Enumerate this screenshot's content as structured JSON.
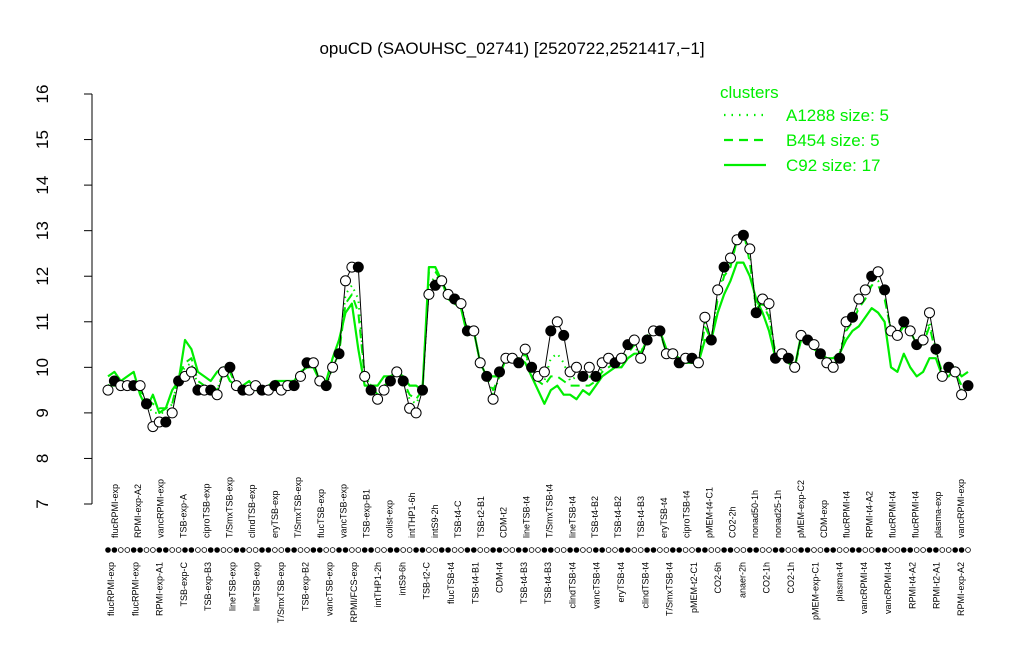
{
  "chart_data": {
    "type": "line",
    "title": "opuCD (SAOUHSC_02741) [2520722,2521417,−1]",
    "xlabel": "",
    "ylabel": "",
    "ylim": [
      7,
      16
    ],
    "y_ticks": [
      "7",
      "8",
      "9",
      "10",
      "11",
      "12",
      "13",
      "14",
      "15",
      "16"
    ],
    "grid": false,
    "legend": {
      "title": "clusters",
      "position": "top-right",
      "entries": [
        {
          "label": "A1288 size: 5",
          "style": "dotted"
        },
        {
          "label": "B454 size: 5",
          "style": "dashed"
        },
        {
          "label": "C92 size: 17",
          "style": "solid"
        }
      ]
    },
    "colors": {
      "cluster_line": "#00ee00",
      "data_line": "#000000",
      "rug": "#000000"
    },
    "top_labels": [
      "flucRPMI-exp",
      "RPMI-exp-A2",
      "vancRPMI-exp",
      "TSB-exp-A",
      "ciproTSB-exp",
      "T/SmxTSB-exp",
      "clindTSB-exp",
      "eryTSB-exp",
      "T/SmxTSB-exp",
      "flucTSB-exp",
      "vancTSB-exp",
      "TSB-exp-B1",
      "colist-exp",
      "intTHP1-6h",
      "intS9-2h",
      "TSB-t4-C",
      "TSB-t2-B1",
      "CDM-t2",
      "lineTSB-t4",
      "T/SmxTSB-t4",
      "lineTSB-t4",
      "TSB-t4-B2",
      "TSB-t4-B2",
      "TSB-t4-B3",
      "eryTSB-t4",
      "ciproTSB-t4",
      "pMEM-t4-C1",
      "CO2-2h",
      "nonad50-1h",
      "nonad25-1h",
      "pMEM-exp-C2",
      "CDM-exp",
      "flucRPMI-t4",
      "RPMI-t4-A2",
      "flucRPMI-t4",
      "flucRPMI-t4",
      "plasma-exp",
      "vancRPMI-exp"
    ],
    "bottom_labels": [
      "flucRPMI-exp",
      "flucRPMI-exp",
      "RPMI-exp-A1",
      "TSB-exp-C",
      "TSB-exp-B3",
      "lineTSB-exp",
      "lineTSB-exp",
      "T/SmxTSB-exp",
      "TSB-exp-B2",
      "vancTSB-exp",
      "RPMI/FCS-exp",
      "intTHP1-2h",
      "intS9-6h",
      "TSB-t2-C",
      "flucTSB-t4",
      "TSB-t4-B1",
      "CDM-t4",
      "TSB-t4-B3",
      "TSB-t4-B3",
      "clindTSB-t4",
      "vancTSB-t4",
      "eryTSB-t4",
      "clindTSB-t4",
      "T/SmxTSB-t4",
      "pMEM-t2-C1",
      "CO2-6h",
      "anaer-2h",
      "CO2-1h",
      "CO2-1h",
      "pMEM-exp-C1",
      "plasma-t4",
      "vancRPMI-t4",
      "vancRPMI-t4",
      "RPMI-t4-A2",
      "RPMI-t2-A1",
      "RPMI-exp-A2"
    ],
    "series": [
      {
        "values": [
          9.5,
          9.7,
          9.6,
          9.6,
          9.6,
          9.6,
          9.2,
          8.7,
          8.8,
          8.8,
          9.0,
          9.7,
          9.8,
          9.9,
          9.5,
          9.5,
          9.5,
          9.4,
          9.9,
          10.0,
          9.6,
          9.5,
          9.5,
          9.6,
          9.5,
          9.5,
          9.6,
          9.5,
          9.6,
          9.6,
          9.8,
          10.1,
          10.1,
          9.7,
          9.6,
          10.0,
          10.3,
          11.9,
          12.2,
          12.2,
          9.8,
          9.5,
          9.3,
          9.5,
          9.7,
          9.9,
          9.7,
          9.1,
          9.0,
          9.5,
          11.6,
          11.8,
          11.9,
          11.6,
          11.5,
          11.4,
          10.8,
          10.8,
          10.1,
          9.8,
          9.3,
          9.9,
          10.2,
          10.2,
          10.1,
          10.4,
          10.0,
          9.8,
          9.9,
          10.8,
          11.0,
          10.7,
          9.9,
          10.0,
          9.8,
          10.0,
          9.8,
          10.1,
          10.2,
          10.1,
          10.2,
          10.5,
          10.6,
          10.2,
          10.6,
          10.8,
          10.8,
          10.3,
          10.3,
          10.1,
          10.2,
          10.2,
          10.1,
          11.1,
          10.6,
          11.7,
          12.2,
          12.4,
          12.8,
          12.9,
          12.6,
          11.2,
          11.5,
          11.4,
          10.2,
          10.3,
          10.2,
          10.0,
          10.7,
          10.6,
          10.5,
          10.3,
          10.1,
          10.0,
          10.2,
          11.0,
          11.1,
          11.5,
          11.7,
          12.0,
          12.1,
          11.7,
          10.8,
          10.7,
          11.0,
          10.8,
          10.5,
          10.6,
          11.2,
          10.4,
          9.8,
          10.0,
          9.9,
          9.4,
          9.6
        ]
      },
      {
        "name": "C92 size: 17",
        "values": [
          9.8,
          9.9,
          9.7,
          9.8,
          9.9,
          9.4,
          9.1,
          9.4,
          9.0,
          9.1,
          9.5,
          9.7,
          10.6,
          10.4,
          9.9,
          9.8,
          9.7,
          9.9,
          10.0,
          9.7,
          9.6,
          9.6,
          9.7,
          9.5,
          9.5,
          9.6,
          9.7,
          9.7,
          9.7,
          9.7,
          9.9,
          10.0,
          10.0,
          9.7,
          9.7,
          10.2,
          10.6,
          11.2,
          11.4,
          10.4,
          9.6,
          9.6,
          9.6,
          9.8,
          9.8,
          9.9,
          9.8,
          9.6,
          9.6,
          9.5,
          12.2,
          12.2,
          11.9,
          11.5,
          11.4,
          11.3,
          10.7,
          10.8,
          10.1,
          9.8,
          9.8,
          9.8,
          10.2,
          10.2,
          10.2,
          10.1,
          9.8,
          9.5,
          9.2,
          9.5,
          9.6,
          9.4,
          9.4,
          9.3,
          9.5,
          9.4,
          9.6,
          9.8,
          9.9,
          10.0,
          10.0,
          10.2,
          10.3,
          10.3,
          10.6,
          10.8,
          10.8,
          10.4,
          10.3,
          10.2,
          10.1,
          10.1,
          10.1,
          10.6,
          10.6,
          11.2,
          11.6,
          11.9,
          12.3,
          12.3,
          12.0,
          11.5,
          11.2,
          10.8,
          10.2,
          10.3,
          10.1,
          10.0,
          10.7,
          10.6,
          10.4,
          10.3,
          10.2,
          10.2,
          10.3,
          10.6,
          10.8,
          10.9,
          11.1,
          11.3,
          11.2,
          11.0,
          10.0,
          9.9,
          10.3,
          10.0,
          9.8,
          9.9,
          10.2,
          10.2,
          9.8,
          9.8,
          10.0,
          9.8,
          9.9
        ]
      },
      {
        "name": "B454 size: 5",
        "values": [
          9.6,
          9.6,
          9.6,
          9.6,
          9.6,
          9.5,
          9.3,
          9.2,
          9.1,
          9.1,
          9.2,
          9.8,
          10.1,
          10.2,
          9.7,
          9.6,
          9.6,
          9.5,
          9.9,
          9.9,
          9.6,
          9.5,
          9.5,
          9.6,
          9.5,
          9.5,
          9.6,
          9.5,
          9.6,
          9.6,
          9.8,
          10.1,
          10.1,
          9.7,
          9.7,
          10.0,
          10.3,
          11.4,
          11.6,
          11.2,
          9.8,
          9.6,
          9.4,
          9.6,
          9.7,
          9.9,
          9.7,
          9.4,
          9.3,
          9.5,
          12.1,
          12.1,
          11.9,
          11.6,
          11.4,
          11.3,
          10.8,
          10.8,
          10.1,
          9.8,
          9.5,
          9.8,
          10.2,
          10.2,
          10.1,
          10.3,
          10.0,
          9.7,
          9.6,
          9.8,
          9.8,
          9.7,
          9.6,
          9.6,
          9.6,
          9.6,
          9.7,
          9.9,
          10.0,
          10.1,
          10.1,
          10.3,
          10.5,
          10.3,
          10.7,
          10.8,
          10.8,
          10.3,
          10.3,
          10.1,
          10.1,
          10.1,
          10.1,
          10.9,
          10.6,
          11.5,
          12.0,
          12.2,
          12.8,
          13.0,
          12.3,
          11.3,
          11.4,
          11.1,
          10.3,
          10.3,
          10.2,
          10.0,
          10.6,
          10.6,
          10.4,
          10.3,
          10.1,
          10.0,
          10.3,
          10.8,
          11.0,
          11.3,
          11.5,
          11.8,
          11.8,
          11.5,
          10.8,
          10.7,
          10.9,
          10.8,
          10.5,
          10.5,
          10.9,
          10.3,
          9.9,
          9.9,
          9.9,
          9.6,
          9.7
        ]
      },
      {
        "name": "A1288 size: 5",
        "values": [
          9.6,
          9.7,
          9.6,
          9.6,
          9.6,
          9.5,
          9.2,
          9.0,
          9.0,
          9.0,
          9.2,
          9.8,
          10.0,
          10.1,
          9.6,
          9.6,
          9.5,
          9.5,
          9.9,
          9.9,
          9.6,
          9.5,
          9.5,
          9.6,
          9.5,
          9.5,
          9.6,
          9.5,
          9.6,
          9.6,
          9.8,
          10.1,
          10.1,
          9.7,
          9.6,
          10.0,
          10.3,
          11.6,
          11.8,
          11.5,
          9.8,
          9.6,
          9.4,
          9.6,
          9.7,
          9.9,
          9.7,
          9.3,
          9.2,
          9.5,
          11.8,
          12.0,
          11.9,
          11.6,
          11.5,
          11.4,
          10.8,
          10.8,
          10.1,
          9.8,
          9.4,
          9.8,
          10.2,
          10.2,
          10.1,
          10.3,
          9.9,
          9.7,
          9.7,
          10.2,
          10.3,
          10.1,
          9.7,
          9.8,
          9.7,
          9.8,
          9.7,
          10.0,
          10.1,
          10.1,
          10.1,
          10.4,
          10.5,
          10.2,
          10.6,
          10.8,
          10.8,
          10.3,
          10.3,
          10.1,
          10.1,
          10.1,
          10.1,
          11.0,
          10.6,
          11.6,
          12.1,
          12.3,
          12.8,
          12.9,
          12.5,
          11.2,
          11.4,
          11.2,
          10.3,
          10.3,
          10.2,
          10.0,
          10.6,
          10.6,
          10.4,
          10.3,
          10.1,
          10.0,
          10.3,
          10.9,
          11.0,
          11.4,
          11.6,
          11.9,
          11.9,
          11.6,
          10.8,
          10.7,
          10.9,
          10.8,
          10.5,
          10.6,
          11.0,
          10.4,
          9.8,
          10.0,
          9.9,
          9.5,
          9.6
        ]
      }
    ]
  }
}
